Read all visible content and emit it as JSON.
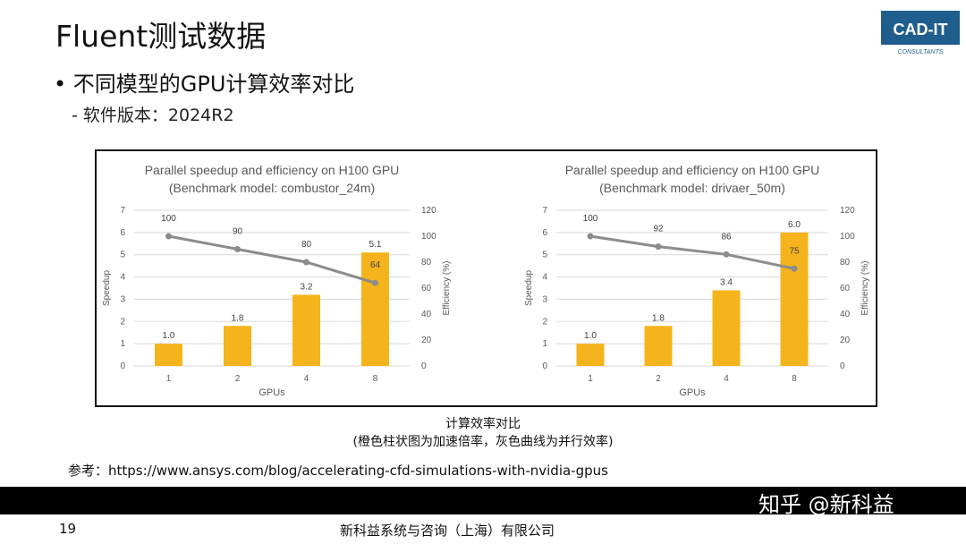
{
  "slide": {
    "title": "Fluent测试数据",
    "bullet": "• 不同模型的GPU计算效率对比",
    "sub_bullet": "-  软件版本：2024R2",
    "caption_line1": "计算效率对比",
    "caption_line2": "(橙色柱状图为加速倍率，灰色曲线为并行效率)",
    "reference": "参考：https://www.ansys.com/blog/accelerating-cfd-simulations-with-nvidia-gpus",
    "page_number": "19",
    "company": "新科益系统与咨询（上海）有限公司",
    "logo_text": "CAD-IT",
    "logo_subtext": "CONSULTANTS",
    "watermark": "知乎 @新科益"
  },
  "colors": {
    "bar": "#F5B41B",
    "line": "#8C8C8C",
    "logo_bg": "#1F5E8C",
    "footer": "#000000"
  },
  "chart_data": [
    {
      "type": "bar",
      "title": "Parallel speedup and efficiency on H100 GPU",
      "subtitle": "(Benchmark model: combustor_24m)",
      "xlabel": "GPUs",
      "ylabel": "Speedup",
      "y2label": "Efficiency (%)",
      "categories": [
        "1",
        "2",
        "4",
        "8"
      ],
      "ylim": [
        0,
        7
      ],
      "y2lim": [
        0,
        120
      ],
      "yticks": [
        0,
        1,
        2,
        3,
        4,
        5,
        6,
        7
      ],
      "y2ticks": [
        0,
        20,
        40,
        60,
        80,
        100,
        120
      ],
      "series": [
        {
          "name": "",
          "kind": "bar",
          "axis": "left",
          "values": [
            1.0,
            1.8,
            3.2,
            5.1
          ],
          "labels": [
            "1.0",
            "1.8",
            "3.2",
            "5.1"
          ]
        },
        {
          "name": "",
          "kind": "line",
          "axis": "right",
          "values": [
            100,
            90,
            80,
            64
          ],
          "labels": [
            "100",
            "90",
            "80",
            "64"
          ]
        }
      ]
    },
    {
      "type": "bar",
      "title": "Parallel speedup and efficiency on H100 GPU",
      "subtitle": "(Benchmark model: drivaer_50m)",
      "xlabel": "GPUs",
      "ylabel": "Speedup",
      "y2label": "Efficiency (%)",
      "categories": [
        "1",
        "2",
        "4",
        "8"
      ],
      "ylim": [
        0,
        7
      ],
      "y2lim": [
        0,
        120
      ],
      "yticks": [
        0,
        1,
        2,
        3,
        4,
        5,
        6,
        7
      ],
      "y2ticks": [
        0,
        20,
        40,
        60,
        80,
        100,
        120
      ],
      "series": [
        {
          "name": "",
          "kind": "bar",
          "axis": "left",
          "values": [
            1.0,
            1.8,
            3.4,
            6.0
          ],
          "labels": [
            "1.0",
            "1.8",
            "3.4",
            "6.0"
          ]
        },
        {
          "name": "",
          "kind": "line",
          "axis": "right",
          "values": [
            100,
            92,
            86,
            75
          ],
          "labels": [
            "100",
            "92",
            "86",
            "75"
          ]
        }
      ]
    }
  ]
}
